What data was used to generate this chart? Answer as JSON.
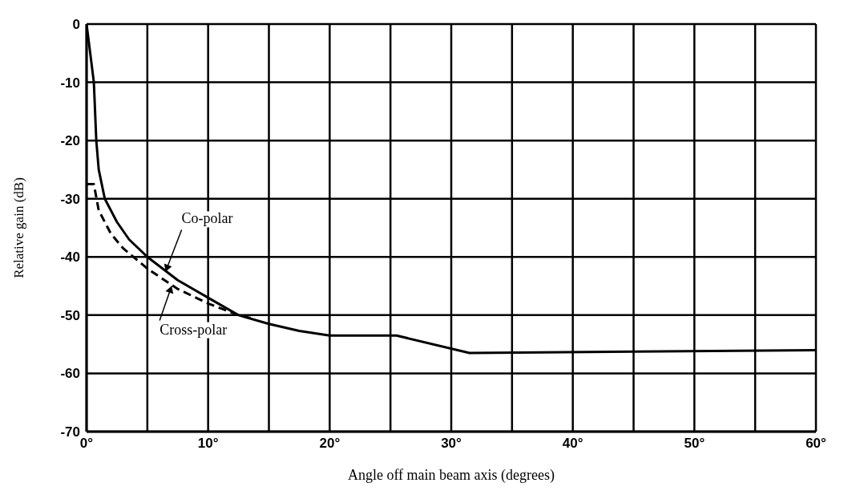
{
  "chart_data": {
    "type": "line",
    "xlabel": "Angle off main beam axis (degrees)",
    "ylabel": "Relative gain (dB)",
    "xlim": [
      0,
      60
    ],
    "ylim": [
      -70,
      0
    ],
    "xticks": [
      {
        "value": 0,
        "label": "0°"
      },
      {
        "value": 5,
        "label": null
      },
      {
        "value": 10,
        "label": "10°"
      },
      {
        "value": 15,
        "label": null
      },
      {
        "value": 20,
        "label": "20°"
      },
      {
        "value": 25,
        "label": null
      },
      {
        "value": 30,
        "label": "30°"
      },
      {
        "value": 35,
        "label": null
      },
      {
        "value": 40,
        "label": "40°"
      },
      {
        "value": 45,
        "label": null
      },
      {
        "value": 50,
        "label": "50°"
      },
      {
        "value": 55,
        "label": null
      },
      {
        "value": 60,
        "label": "60°"
      }
    ],
    "yticks": [
      0,
      -10,
      -20,
      -30,
      -40,
      -50,
      -60,
      -70
    ],
    "grid": true,
    "marker": "none",
    "series": [
      {
        "color": "#000000",
        "line_style": "solid",
        "x": [
          0,
          0.3,
          0.6,
          0.8,
          1,
          1.5,
          2.5,
          3.5,
          5,
          7.5,
          10,
          12.5,
          15,
          17.5,
          20,
          25.5,
          31.5,
          60
        ],
        "values": [
          0,
          -5,
          -10,
          -20,
          -25,
          -30,
          -34,
          -37,
          -40,
          -44,
          -47,
          -50,
          -51.5,
          -52.7,
          -53.5,
          -53.5,
          -56.5,
          -56
        ]
      },
      {
        "color": "#000000",
        "line_style": "dashed",
        "x": [
          0,
          0.6,
          1,
          2,
          3,
          5,
          7.5,
          10,
          12.5,
          13.5
        ],
        "values": [
          -27.5,
          -27.5,
          -32,
          -36,
          -38.5,
          -42,
          -45.5,
          -48,
          -50,
          -50.5
        ]
      }
    ],
    "annotations": [
      {
        "text": "Co-polar",
        "x": 6.5,
        "y": -42.5
      },
      {
        "text": "Cross-polar",
        "x": 7,
        "y": -45
      }
    ]
  }
}
